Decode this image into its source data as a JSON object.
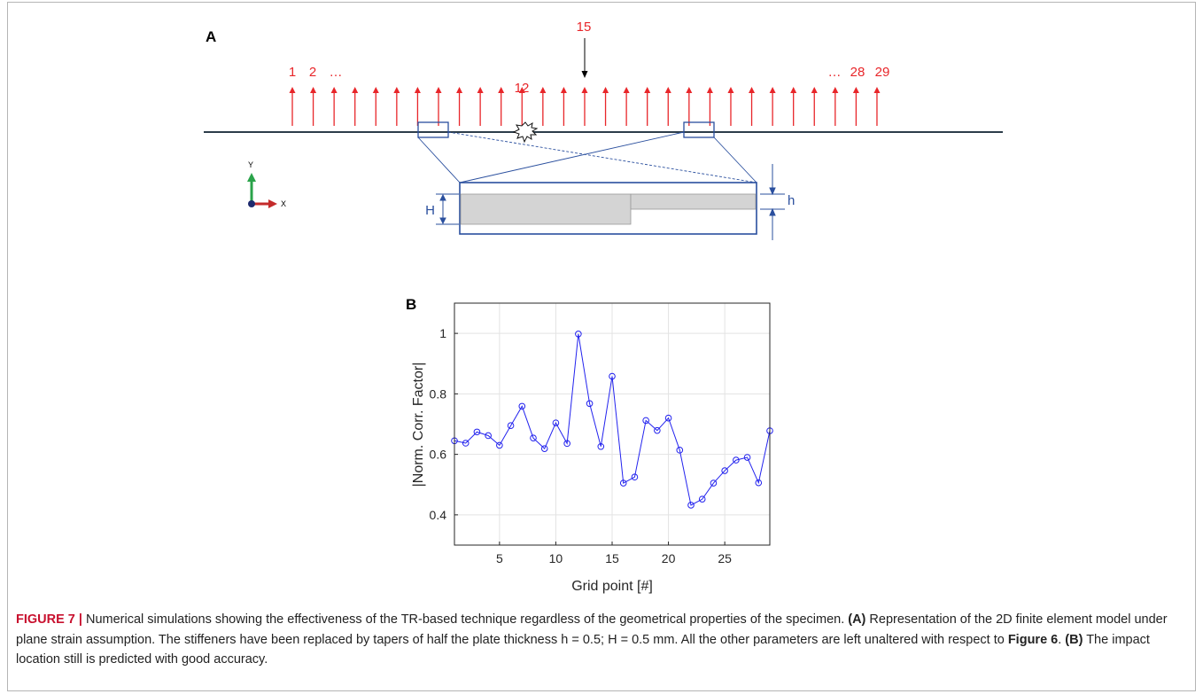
{
  "panel_a": {
    "label": "A",
    "arrow_labels": [
      "1",
      "2",
      "…",
      "12",
      "…",
      "28",
      "29"
    ],
    "impact_label": "15",
    "axis_x": "X",
    "axis_y": "Y",
    "dim_big": "H",
    "dim_small": "h",
    "colors": {
      "arrows": "#e8262a",
      "plate": "#2d3d4a",
      "box": "#2a4f9e",
      "taper": "#d4d4d4"
    },
    "sensor_count": 29,
    "impact_point": 15
  },
  "panel_b": {
    "label": "B"
  },
  "chart_data": {
    "type": "line",
    "xlabel": "Grid point [#]",
    "ylabel": "|Norm. Corr. Factor|",
    "xlim": [
      1,
      29
    ],
    "ylim": [
      0.3,
      1.1
    ],
    "xticks": [
      5,
      10,
      15,
      20,
      25
    ],
    "yticks": [
      0.4,
      0.6,
      0.8,
      1
    ],
    "ytick_labels": [
      "0.4",
      "0.6",
      "0.8",
      "1"
    ],
    "grid": true,
    "marker": "circle",
    "color": "#2222ee",
    "x": [
      1,
      2,
      3,
      4,
      5,
      6,
      7,
      8,
      9,
      10,
      11,
      12,
      13,
      14,
      15,
      16,
      17,
      18,
      19,
      20,
      21,
      22,
      23,
      24,
      25,
      26,
      27,
      28,
      29
    ],
    "values": [
      0.645,
      0.637,
      0.674,
      0.662,
      0.63,
      0.695,
      0.759,
      0.654,
      0.619,
      0.704,
      0.636,
      0.998,
      0.768,
      0.626,
      0.858,
      0.505,
      0.525,
      0.712,
      0.679,
      0.72,
      0.614,
      0.432,
      0.452,
      0.505,
      0.546,
      0.581,
      0.59,
      0.506,
      0.678
    ]
  },
  "caption": {
    "figure_no": "FIGURE 7 |",
    "t1": " Numerical simulations showing the effectiveness of the TR-based technique regardless of the geometrical properties of the specimen. ",
    "a_ref": "(A)",
    "t2": " Representation of the 2D finite element model under plane strain assumption. The stiffeners have been replaced by tapers of half the plate thickness h = 0.5; H = 0.5 mm. All the other parameters are left unaltered with respect to ",
    "fig_ref": "Figure 6",
    "t3": ". ",
    "b_ref": "(B)",
    "t4": " The impact location still is predicted with good accuracy."
  }
}
